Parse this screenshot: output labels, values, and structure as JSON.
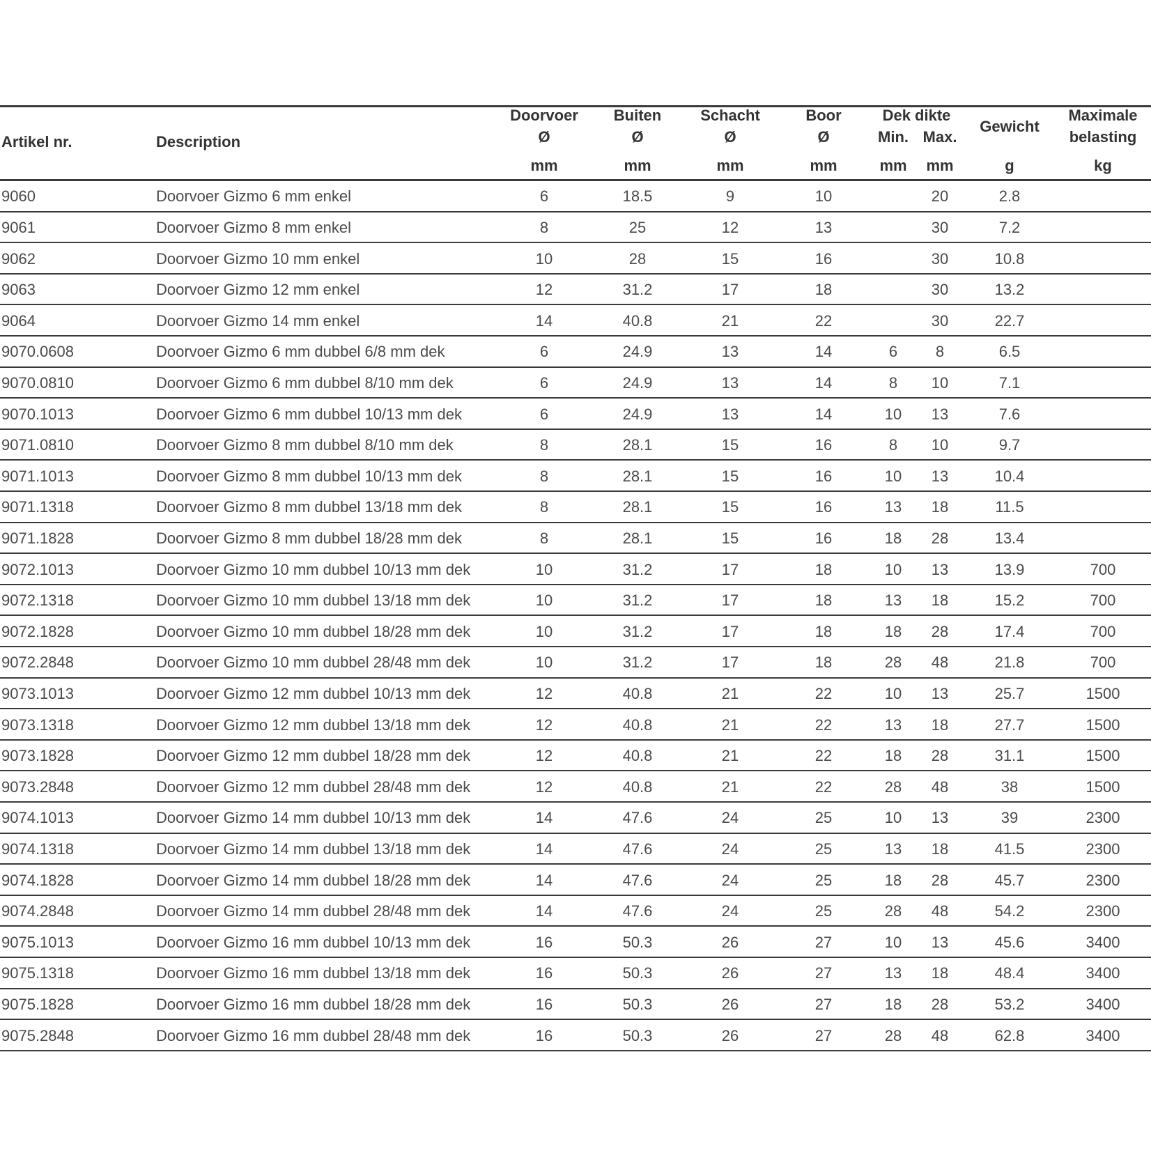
{
  "header": {
    "group": "Dek dikte",
    "columns": [
      {
        "label": [
          "Artikel nr."
        ]
      },
      {
        "label": [
          "Description"
        ]
      },
      {
        "label": [
          "Doorvoer",
          "Ø"
        ],
        "unit": "mm"
      },
      {
        "label": [
          "Buiten",
          "Ø"
        ],
        "unit": "mm"
      },
      {
        "label": [
          "Schacht",
          "Ø"
        ],
        "unit": "mm"
      },
      {
        "label": [
          "Boor",
          "Ø"
        ],
        "unit": "mm"
      },
      {
        "label": [
          "Min."
        ],
        "unit": "mm"
      },
      {
        "label": [
          "Max."
        ],
        "unit": "mm"
      },
      {
        "label": [
          "Gewicht"
        ],
        "unit": "g"
      },
      {
        "label": [
          "Maximale",
          "belasting"
        ],
        "unit": "kg"
      }
    ]
  },
  "table": {
    "rows": [
      [
        "9060",
        "Doorvoer Gizmo 6 mm enkel",
        6,
        18.5,
        9,
        10,
        null,
        20,
        2.8,
        null
      ],
      [
        "9061",
        "Doorvoer Gizmo 8 mm enkel",
        8,
        25,
        12,
        13,
        null,
        30,
        7.2,
        null
      ],
      [
        "9062",
        "Doorvoer Gizmo 10 mm enkel",
        10,
        28,
        15,
        16,
        null,
        30,
        10.8,
        null
      ],
      [
        "9063",
        "Doorvoer Gizmo 12 mm enkel",
        12,
        31.2,
        17,
        18,
        null,
        30,
        13.2,
        null
      ],
      [
        "9064",
        "Doorvoer Gizmo 14 mm enkel",
        14,
        40.8,
        21,
        22,
        null,
        30,
        22.7,
        null
      ],
      [
        "9070.0608",
        "Doorvoer Gizmo 6 mm dubbel 6/8 mm dek",
        6,
        24.9,
        13,
        14,
        6,
        8,
        6.5,
        null
      ],
      [
        "9070.0810",
        "Doorvoer Gizmo 6 mm dubbel 8/10 mm dek",
        6,
        24.9,
        13,
        14,
        8,
        10,
        7.1,
        null
      ],
      [
        "9070.1013",
        "Doorvoer Gizmo 6 mm dubbel 10/13 mm dek",
        6,
        24.9,
        13,
        14,
        10,
        13,
        7.6,
        null
      ],
      [
        "9071.0810",
        "Doorvoer Gizmo 8 mm dubbel 8/10 mm dek",
        8,
        28.1,
        15,
        16,
        8,
        10,
        9.7,
        null
      ],
      [
        "9071.1013",
        "Doorvoer Gizmo 8 mm dubbel 10/13 mm dek",
        8,
        28.1,
        15,
        16,
        10,
        13,
        10.4,
        null
      ],
      [
        "9071.1318",
        "Doorvoer Gizmo 8 mm dubbel 13/18 mm dek",
        8,
        28.1,
        15,
        16,
        13,
        18,
        11.5,
        null
      ],
      [
        "9071.1828",
        "Doorvoer Gizmo 8 mm dubbel 18/28 mm dek",
        8,
        28.1,
        15,
        16,
        18,
        28,
        13.4,
        null
      ],
      [
        "9072.1013",
        "Doorvoer Gizmo 10 mm dubbel 10/13 mm dek",
        10,
        31.2,
        17,
        18,
        10,
        13,
        13.9,
        700
      ],
      [
        "9072.1318",
        "Doorvoer Gizmo 10 mm dubbel 13/18 mm dek",
        10,
        31.2,
        17,
        18,
        13,
        18,
        15.2,
        700
      ],
      [
        "9072.1828",
        "Doorvoer Gizmo 10 mm dubbel 18/28 mm dek",
        10,
        31.2,
        17,
        18,
        18,
        28,
        17.4,
        700
      ],
      [
        "9072.2848",
        "Doorvoer Gizmo 10 mm dubbel 28/48 mm dek",
        10,
        31.2,
        17,
        18,
        28,
        48,
        21.8,
        700
      ],
      [
        "9073.1013",
        "Doorvoer Gizmo 12 mm dubbel 10/13 mm dek",
        12,
        40.8,
        21,
        22,
        10,
        13,
        25.7,
        1500
      ],
      [
        "9073.1318",
        "Doorvoer Gizmo 12 mm dubbel 13/18 mm dek",
        12,
        40.8,
        21,
        22,
        13,
        18,
        27.7,
        1500
      ],
      [
        "9073.1828",
        "Doorvoer Gizmo 12 mm dubbel 18/28 mm dek",
        12,
        40.8,
        21,
        22,
        18,
        28,
        31.1,
        1500
      ],
      [
        "9073.2848",
        "Doorvoer Gizmo 12 mm dubbel 28/48 mm dek",
        12,
        40.8,
        21,
        22,
        28,
        48,
        38,
        1500
      ],
      [
        "9074.1013",
        "Doorvoer Gizmo 14 mm dubbel 10/13 mm dek",
        14,
        47.6,
        24,
        25,
        10,
        13,
        39,
        2300
      ],
      [
        "9074.1318",
        "Doorvoer Gizmo 14 mm dubbel 13/18 mm dek",
        14,
        47.6,
        24,
        25,
        13,
        18,
        41.5,
        2300
      ],
      [
        "9074.1828",
        "Doorvoer Gizmo 14 mm dubbel 18/28 mm dek",
        14,
        47.6,
        24,
        25,
        18,
        28,
        45.7,
        2300
      ],
      [
        "9074.2848",
        "Doorvoer Gizmo 14 mm dubbel 28/48 mm dek",
        14,
        47.6,
        24,
        25,
        28,
        48,
        54.2,
        2300
      ],
      [
        "9075.1013",
        "Doorvoer Gizmo 16 mm dubbel 10/13 mm dek",
        16,
        50.3,
        26,
        27,
        10,
        13,
        45.6,
        3400
      ],
      [
        "9075.1318",
        "Doorvoer Gizmo 16 mm dubbel 13/18 mm dek",
        16,
        50.3,
        26,
        27,
        13,
        18,
        48.4,
        3400
      ],
      [
        "9075.1828",
        "Doorvoer Gizmo 16 mm dubbel 18/28 mm dek",
        16,
        50.3,
        26,
        27,
        18,
        28,
        53.2,
        3400
      ],
      [
        "9075.2848",
        "Doorvoer Gizmo 16 mm dubbel 28/48 mm dek",
        16,
        50.3,
        26,
        27,
        28,
        48,
        62.8,
        3400
      ]
    ]
  }
}
